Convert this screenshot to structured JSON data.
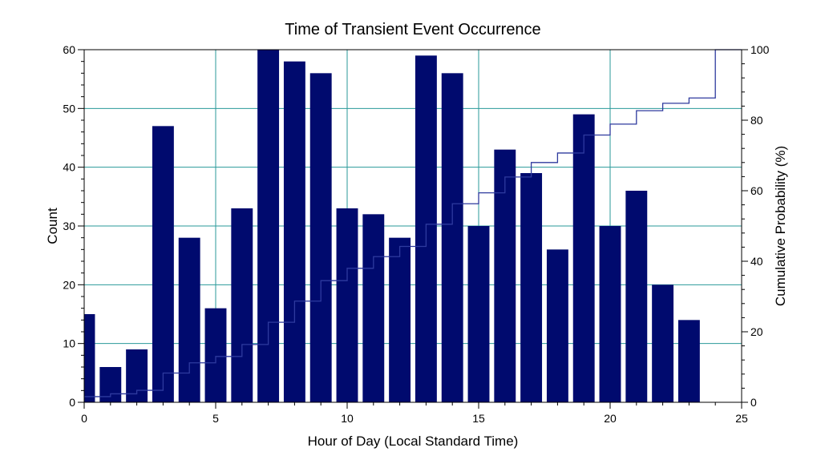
{
  "chart_data": {
    "type": "bar",
    "title": "Time of Transient Event Occurrence",
    "xlabel": "Hour of Day (Local Standard Time)",
    "ylabel": "Count",
    "y2label": "Cumulative Probability (%)",
    "xlim": [
      0,
      25
    ],
    "ylim": [
      0,
      60
    ],
    "y2lim": [
      0,
      100
    ],
    "xticks": [
      0,
      5,
      10,
      15,
      20,
      25
    ],
    "yticks": [
      0,
      10,
      20,
      30,
      40,
      50,
      60
    ],
    "y2ticks": [
      0,
      20,
      40,
      60,
      80,
      100
    ],
    "grid": true,
    "legend": "none",
    "bar_color": "#000a6e",
    "line_color": "#2e3a9e",
    "grid_color": "#2a9a9a",
    "series": [
      {
        "type": "bar",
        "x": [
          0,
          1,
          2,
          3,
          4,
          5,
          6,
          7,
          8,
          9,
          10,
          11,
          12,
          13,
          14,
          15,
          16,
          17,
          18,
          19,
          20,
          21,
          22,
          23
        ],
        "values": [
          15,
          6,
          9,
          47,
          28,
          16,
          33,
          60,
          58,
          56,
          33,
          32,
          28,
          59,
          56,
          30,
          43,
          39,
          26,
          49,
          30,
          36,
          20,
          14
        ]
      },
      {
        "type": "step",
        "axis": "right",
        "x": [
          0,
          1,
          2,
          3,
          4,
          5,
          6,
          7,
          8,
          9,
          10,
          11,
          12,
          13,
          14,
          15,
          16,
          17,
          18,
          19,
          20,
          21,
          22,
          23,
          24,
          25
        ],
        "values": [
          1.6,
          2.4,
          3.4,
          8.3,
          11.2,
          13.0,
          16.4,
          22.7,
          28.7,
          34.5,
          38.0,
          41.3,
          44.2,
          50.5,
          56.3,
          59.4,
          63.9,
          68.0,
          70.7,
          75.8,
          78.9,
          82.7,
          84.8,
          86.3,
          100,
          100
        ]
      }
    ]
  }
}
